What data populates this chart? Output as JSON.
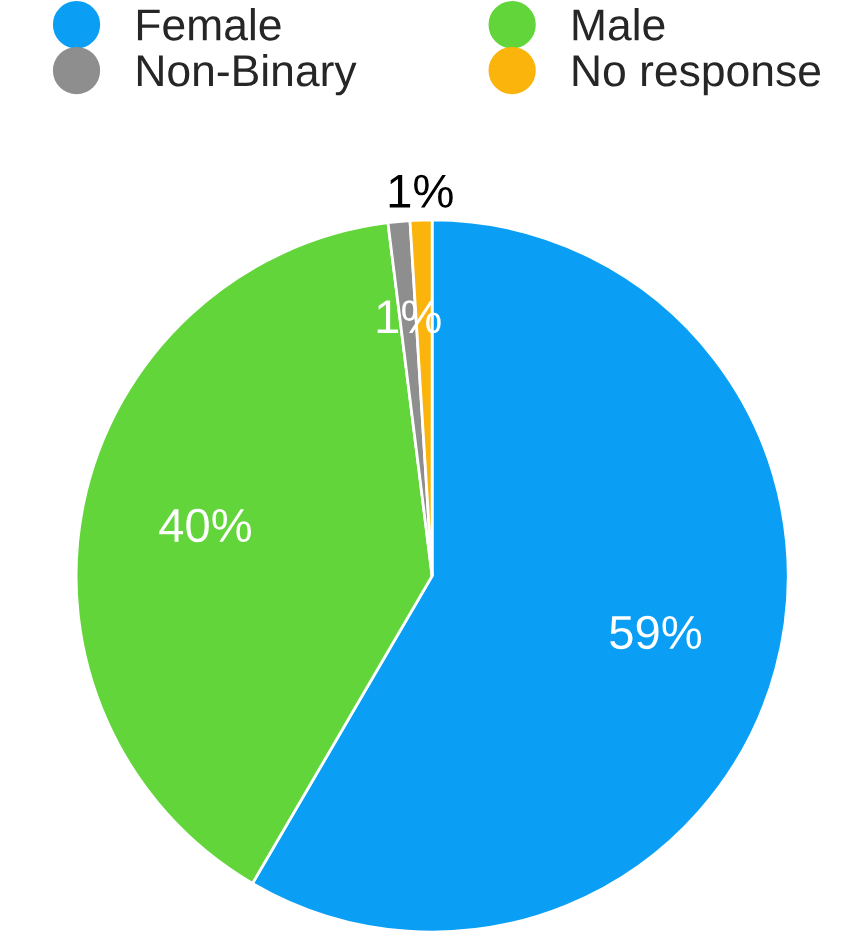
{
  "chart_data": {
    "type": "pie",
    "categories": [
      "Female",
      "Male",
      "Non-Binary",
      "No response"
    ],
    "values": [
      59,
      40,
      1,
      1
    ],
    "colors": [
      "#0a9ff5",
      "#62d53a",
      "#8e8e8e",
      "#fbb40b"
    ],
    "value_labels": [
      "59%",
      "40%",
      "1%",
      "1%"
    ],
    "legend": "top"
  }
}
